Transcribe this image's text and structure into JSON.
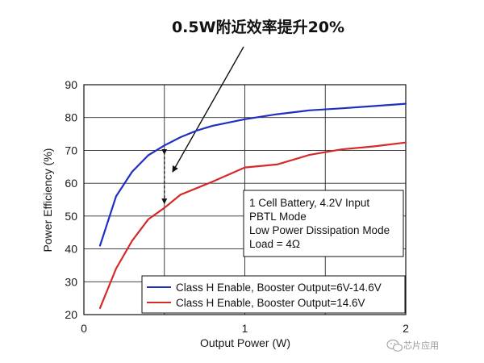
{
  "chart_data": {
    "type": "line",
    "title": "0.5W附近效率提升20%",
    "xlabel": "Output Power (W)",
    "ylabel": "Power Efficiency (%)",
    "xlim": [
      0,
      2
    ],
    "ylim": [
      20,
      90
    ],
    "x_ticks": [
      0,
      1,
      2
    ],
    "y_ticks": [
      20,
      30,
      40,
      50,
      60,
      70,
      80,
      90
    ],
    "grid": true,
    "series": [
      {
        "name": "Class H Enable, Booster Output=6V-14.6V",
        "color": "#1f2fbf",
        "x": [
          0.1,
          0.2,
          0.3,
          0.4,
          0.5,
          0.6,
          0.7,
          0.8,
          1.0,
          1.2,
          1.4,
          1.6,
          1.8,
          2.0
        ],
        "values": [
          41,
          56,
          63.5,
          68.5,
          71.5,
          74,
          76,
          77.5,
          79.5,
          81,
          82.2,
          82.8,
          83.5,
          84.2
        ]
      },
      {
        "name": "Class H Enable, Booster Output=14.6V",
        "color": "#d42a2a",
        "x": [
          0.1,
          0.2,
          0.3,
          0.4,
          0.5,
          0.6,
          0.7,
          0.8,
          1.0,
          1.2,
          1.4,
          1.6,
          1.8,
          2.0
        ],
        "values": [
          22,
          34,
          42.5,
          49,
          52.5,
          56.5,
          58.5,
          60.5,
          64.8,
          65.7,
          68.6,
          70.3,
          71.2,
          72.4
        ]
      }
    ],
    "annotation_box": {
      "lines": [
        "1 Cell Battery, 4.2V Input",
        "PBTL Mode",
        "Low Power Dissipation Mode",
        "Load = 4Ω"
      ]
    },
    "legend_placement": "bottom-right",
    "highlight": {
      "x": 0.5,
      "from": 52.5,
      "to": 71.5
    }
  },
  "watermark": {
    "text": "芯片应用",
    "icon": "wechat-icon"
  }
}
